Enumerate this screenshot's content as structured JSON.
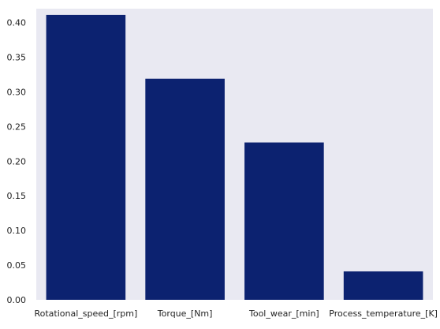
{
  "chart_data": {
    "type": "bar",
    "title": "",
    "xlabel": "",
    "ylabel": "",
    "categories": [
      "Rotational_speed_[rpm]",
      "Torque_[Nm]",
      "Tool_wear_[min]",
      "Process_temperature_[K]"
    ],
    "values": [
      0.411,
      0.319,
      0.227,
      0.041
    ],
    "ylim": [
      0,
      0.42
    ],
    "yticks": [
      "0.00",
      "0.05",
      "0.10",
      "0.15",
      "0.20",
      "0.25",
      "0.30",
      "0.35",
      "0.40"
    ],
    "grid": false,
    "colors": {
      "bar": "#0c2270",
      "plot_background": "#e9e9f2",
      "tick_label": "#222222"
    }
  }
}
